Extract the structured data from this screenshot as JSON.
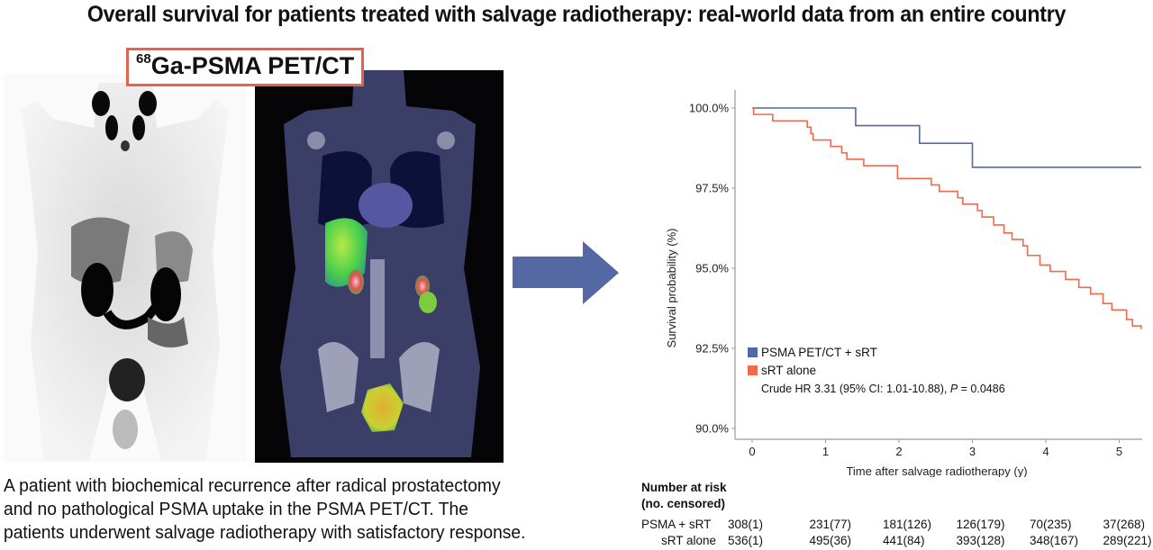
{
  "title": "Overall survival for patients treated with salvage radiotherapy: real-world data from an entire country",
  "scan_label": {
    "sup": "68",
    "text": "Ga-PSMA PET/CT"
  },
  "images": {
    "left": "PET maximum intensity projection (grayscale) — whole body",
    "right": "Fused PET/CT coronal slice (color overlay)"
  },
  "caption": [
    "A patient with biochemical recurrence after radical prostatectomy",
    "and no pathological PSMA uptake in the PSMA PET/CT. The",
    "patients underwent salvage radiotherapy with satisfactory response."
  ],
  "arrow": {
    "icon": "right-arrow-icon",
    "color": "#5469a4"
  },
  "chart_data": {
    "type": "line",
    "subtype": "kaplan-meier-step",
    "title": "",
    "xlabel": "Time after salvage radiotherapy (y)",
    "ylabel": "Survival probability (%)",
    "xlim": [
      0,
      5.3
    ],
    "ylim": [
      89.7,
      100.3
    ],
    "xticks": [
      "0",
      "1",
      "2",
      "3",
      "4",
      "5"
    ],
    "yticks": [
      "90.0%",
      "92.5%",
      "95.0%",
      "97.5%",
      "100.0%"
    ],
    "grid": false,
    "legend_position": "inside-bottom-left",
    "series": [
      {
        "name": "PSMA PET/CT + sRT",
        "color": "#5469a4",
        "x": [
          0,
          1.41,
          2.28,
          3.0,
          5.3
        ],
        "y": [
          100.0,
          99.45,
          98.9,
          98.15,
          98.15
        ]
      },
      {
        "name": "sRT alone",
        "color": "#ef6a4f",
        "x": [
          0,
          0.02,
          0.28,
          0.75,
          0.8,
          0.83,
          1.07,
          1.22,
          1.29,
          1.52,
          1.98,
          2.44,
          2.55,
          2.8,
          2.87,
          3.07,
          3.13,
          3.29,
          3.43,
          3.54,
          3.69,
          3.75,
          3.92,
          4.06,
          4.27,
          4.45,
          4.61,
          4.78,
          4.9,
          5.1,
          5.18,
          5.3
        ],
        "y": [
          100.0,
          99.8,
          99.6,
          99.4,
          99.2,
          99.0,
          98.8,
          98.6,
          98.4,
          98.2,
          97.8,
          97.6,
          97.4,
          97.2,
          97.0,
          96.8,
          96.6,
          96.35,
          96.1,
          95.9,
          95.7,
          95.4,
          95.1,
          94.9,
          94.65,
          94.4,
          94.2,
          93.9,
          93.7,
          93.4,
          93.2,
          93.1
        ]
      }
    ],
    "annotation": {
      "prefix": "Crude HR 3.31 (95% CI: 1.01-10.88), ",
      "p_label": "P",
      "p_suffix": " = 0.0486"
    }
  },
  "risk_table": {
    "title_line1": "Number at risk",
    "title_line2": "(no. censored)",
    "rows": [
      {
        "label": "PSMA + sRT",
        "values": [
          "308(1)",
          "231(77)",
          "181(126)",
          "126(179)",
          "70(235)",
          "37(268)"
        ]
      },
      {
        "label": "sRT alone",
        "values": [
          "536(1)",
          "495(36)",
          "441(84)",
          "393(128)",
          "348(167)",
          "289(221)"
        ]
      }
    ]
  }
}
